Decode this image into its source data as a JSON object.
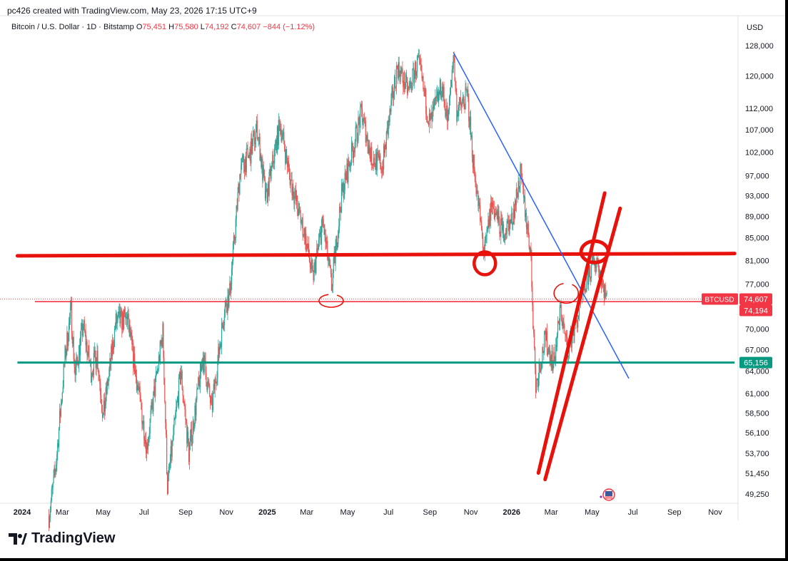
{
  "header": {
    "created_by": "pc426 created with TradingView.com, May 23, 2026 17:15 UTC+9"
  },
  "symbol": {
    "name": "Bitcoin / U.S. Dollar · 1D · Bitstamp",
    "open_label": "O",
    "open": "75,451",
    "high_label": "H",
    "high": "75,580",
    "low_label": "L",
    "low": "74,192",
    "close_label": "C",
    "close": "74,607",
    "change": "−844 (−1.12%)"
  },
  "currency": "USD",
  "footer": {
    "brand": "TradingView"
  },
  "colors": {
    "up": "#26a69a",
    "down": "#ef5350",
    "drawing_red": "#e8120c",
    "trend_blue": "#2962ff",
    "support_teal": "#089981",
    "axis_text": "#131722"
  },
  "chart_data": {
    "type": "candlestick",
    "symbol": "BTCUSD",
    "interval": "1D",
    "scale": "log",
    "y_ticks": [
      128000,
      120000,
      112000,
      107000,
      102000,
      97000,
      93000,
      89000,
      85000,
      81000,
      77000,
      70000,
      67000,
      64000,
      61000,
      58500,
      56100,
      53700,
      51450,
      49250
    ],
    "y_tick_labels": [
      "128,000",
      "120,000",
      "112,000",
      "107,000",
      "102,000",
      "97,000",
      "93,000",
      "89,000",
      "85,000",
      "81,000",
      "77,000",
      "70,000",
      "67,000",
      "64,000",
      "61,000",
      "58,500",
      "56,100",
      "53,700",
      "51,450",
      "49,250"
    ],
    "x_ticks": [
      "2024",
      "Mar",
      "May",
      "Jul",
      "Sep",
      "Nov",
      "2025",
      "Mar",
      "May",
      "Jul",
      "Sep",
      "Nov",
      "2026",
      "Mar",
      "May",
      "Jul",
      "Sep",
      "Nov"
    ],
    "x_tick_dates": [
      "2024-01-01",
      "2024-03-01",
      "2024-05-01",
      "2024-07-01",
      "2024-09-01",
      "2024-11-01",
      "2025-01-01",
      "2025-03-01",
      "2025-05-01",
      "2025-07-01",
      "2025-09-01",
      "2025-11-01",
      "2026-01-01",
      "2026-03-01",
      "2026-05-01",
      "2026-07-01",
      "2026-09-01",
      "2026-11-01"
    ],
    "bold_x_ticks": [
      "2024",
      "2025",
      "2026"
    ],
    "price_path": [
      [
        "2024-02-10",
        47000
      ],
      [
        "2024-02-20",
        52000
      ],
      [
        "2024-03-05",
        66000
      ],
      [
        "2024-03-14",
        72800
      ],
      [
        "2024-03-20",
        63500
      ],
      [
        "2024-04-01",
        70500
      ],
      [
        "2024-04-13",
        64000
      ],
      [
        "2024-04-22",
        66500
      ],
      [
        "2024-05-01",
        58000
      ],
      [
        "2024-05-20",
        71000
      ],
      [
        "2024-06-06",
        71500
      ],
      [
        "2024-06-24",
        60500
      ],
      [
        "2024-07-05",
        54500
      ],
      [
        "2024-07-29",
        69500
      ],
      [
        "2024-08-05",
        50000
      ],
      [
        "2024-08-25",
        64000
      ],
      [
        "2024-09-06",
        53700
      ],
      [
        "2024-09-27",
        66000
      ],
      [
        "2024-10-10",
        59000
      ],
      [
        "2024-10-29",
        73000
      ],
      [
        "2024-11-06",
        75500
      ],
      [
        "2024-11-22",
        99000
      ],
      [
        "2024-12-05",
        101000
      ],
      [
        "2024-12-17",
        107500
      ],
      [
        "2024-12-30",
        92000
      ],
      [
        "2025-01-20",
        108500
      ],
      [
        "2025-02-05",
        96000
      ],
      [
        "2025-02-25",
        86000
      ],
      [
        "2025-03-10",
        78000
      ],
      [
        "2025-03-25",
        88000
      ],
      [
        "2025-04-07",
        76500
      ],
      [
        "2025-04-22",
        93000
      ],
      [
        "2025-05-22",
        111000
      ],
      [
        "2025-06-05",
        101000
      ],
      [
        "2025-06-22",
        99000
      ],
      [
        "2025-07-14",
        122500
      ],
      [
        "2025-07-31",
        116000
      ],
      [
        "2025-08-14",
        124000
      ],
      [
        "2025-09-01",
        108000
      ],
      [
        "2025-09-18",
        117500
      ],
      [
        "2025-09-28",
        109000
      ],
      [
        "2025-10-06",
        126200
      ],
      [
        "2025-10-11",
        111500
      ],
      [
        "2025-10-27",
        115000
      ],
      [
        "2025-11-04",
        101000
      ],
      [
        "2025-11-21",
        82000
      ],
      [
        "2025-12-02",
        91500
      ],
      [
        "2025-12-18",
        86000
      ],
      [
        "2026-01-01",
        88000
      ],
      [
        "2026-01-14",
        97200
      ],
      [
        "2026-01-29",
        83000
      ],
      [
        "2026-02-06",
        62000
      ],
      [
        "2026-02-20",
        68500
      ],
      [
        "2026-03-05",
        65000
      ],
      [
        "2026-03-15",
        73000
      ],
      [
        "2026-03-25",
        67000
      ],
      [
        "2026-04-10",
        72000
      ],
      [
        "2026-04-25",
        78500
      ],
      [
        "2026-05-08",
        81500
      ],
      [
        "2026-05-23",
        74607
      ]
    ],
    "last_price": 74607,
    "last_price_label": "74,607",
    "last_price_tag": "BTCUSD",
    "secondary_price": 74194,
    "secondary_price_label": "74,194",
    "support_level": 65156,
    "support_label": "65,156",
    "drawings": {
      "horizontal_resistance": {
        "price_start": 81800,
        "price_end": 82200,
        "date_start": "2023-12-25",
        "date_end": "2026-11-30"
      },
      "horizontal_support_red": {
        "price": 74194,
        "date_start": "2024-01-20",
        "date_end": "2026-10-20"
      },
      "horizontal_support_teal": {
        "price": 65156,
        "date_start": "2023-12-25",
        "date_end": "2026-11-30"
      },
      "trendline_blue": {
        "date_start": "2025-10-06",
        "price_start": 126200,
        "date_end": "2026-06-25",
        "price_end": 63000
      },
      "channel_line_1": {
        "date_start": "2026-02-10",
        "price_start": 51500,
        "date_end": "2026-05-20",
        "price_end": 93500
      },
      "channel_line_2": {
        "date_start": "2026-02-20",
        "price_start": 50800,
        "date_end": "2026-06-12",
        "price_end": 90500
      },
      "circles": [
        {
          "date": "2025-11-22",
          "price": 80500
        },
        {
          "date": "2026-05-05",
          "price": 82500
        },
        {
          "date": "2025-04-08",
          "price": 74300
        },
        {
          "date": "2026-03-25",
          "price": 75500
        }
      ]
    }
  }
}
